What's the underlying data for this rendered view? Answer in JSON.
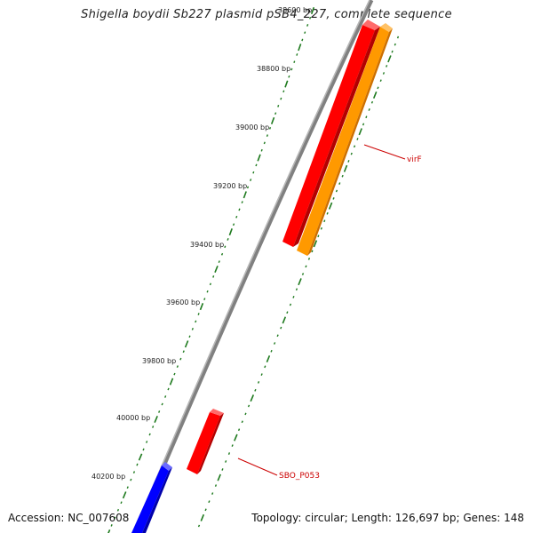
{
  "title": "Shigella boydii Sb227 plasmid pSB4_227, complete sequence",
  "footer": {
    "accession": "Accession: NC_007608",
    "summary": "Topology: circular; Length: 126,697 bp; Genes: 148"
  },
  "ticks": [
    {
      "label": "38800 bp"
    },
    {
      "label": "39000 bp"
    },
    {
      "label": "39200 bp"
    },
    {
      "label": "39400 bp"
    },
    {
      "label": "39600 bp"
    },
    {
      "label": "39800 bp"
    },
    {
      "label": "40000 bp"
    },
    {
      "label": "40200 bp"
    }
  ],
  "top_partial_tick": "38600 bp",
  "genes": [
    {
      "name": "virF",
      "color": "#ff8c00",
      "strand": "forward"
    },
    {
      "name": "SBO_P053",
      "color": "#ff0000",
      "strand": "forward"
    }
  ],
  "colors": {
    "backbone": "#808080",
    "tick": "#1e7a1e",
    "red_feature": "#ff0000",
    "orange_feature": "#ff9900",
    "blue_feature": "#0000ff",
    "label": "#cc0000"
  }
}
